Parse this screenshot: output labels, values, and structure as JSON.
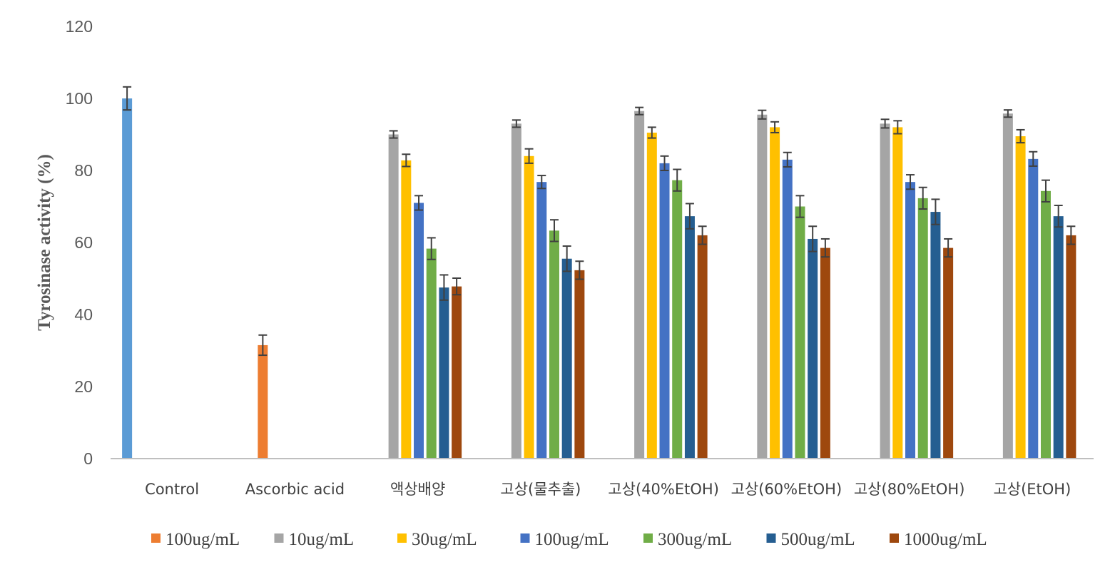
{
  "chart_data": {
    "type": "bar",
    "title": "",
    "xlabel": "",
    "ylabel": "Tyrosinase  activity (%)",
    "ylim": [
      0,
      120
    ],
    "yticks": [
      0,
      20,
      40,
      60,
      80,
      100,
      120
    ],
    "grid": false,
    "legend_position": "bottom",
    "categories": [
      "Control",
      "Ascorbic acid",
      "액상배양",
      "고상(물추출)",
      "고상(40%EtOH)",
      "고상(60%EtOH)",
      "고상(80%EtOH)",
      "고상(EtOH)"
    ],
    "control": {
      "name": "",
      "color": "#5B9BD5",
      "category": "Control",
      "value": 100,
      "error": 3.2
    },
    "series": [
      {
        "name": "100ug/mL",
        "color": "#ED7D31",
        "values": [
          null,
          31.5,
          null,
          null,
          null,
          null,
          null,
          null
        ],
        "errors": [
          null,
          2.8,
          null,
          null,
          null,
          null,
          null,
          null
        ]
      },
      {
        "name": "10ug/mL",
        "color": "#A5A5A5",
        "values": [
          null,
          null,
          90,
          93,
          96.5,
          95.5,
          93,
          95.8
        ],
        "errors": [
          null,
          null,
          1,
          1,
          1,
          1.2,
          1.2,
          1
        ]
      },
      {
        "name": "30ug/mL",
        "color": "#FFC000",
        "values": [
          null,
          null,
          82.8,
          84,
          90.5,
          92,
          92,
          89.5
        ],
        "errors": [
          null,
          null,
          1.7,
          2,
          1.5,
          1.5,
          1.8,
          1.8
        ]
      },
      {
        "name": "100ug/mL",
        "color": "#4472C4",
        "values": [
          null,
          null,
          71,
          76.8,
          82,
          83,
          76.8,
          83.2
        ],
        "errors": [
          null,
          null,
          2,
          1.8,
          2,
          2,
          2,
          2
        ]
      },
      {
        "name": "300ug/mL",
        "color": "#70AD47",
        "values": [
          null,
          null,
          58.3,
          63.3,
          77.3,
          70,
          72.3,
          74.3
        ],
        "errors": [
          null,
          null,
          3,
          3,
          3,
          3,
          3,
          3
        ]
      },
      {
        "name": "500ug/mL",
        "color": "#255E91",
        "values": [
          null,
          null,
          47.5,
          55.5,
          67.3,
          61,
          68.5,
          67.3
        ],
        "errors": [
          null,
          null,
          3.5,
          3.5,
          3.5,
          3.5,
          3.5,
          3
        ]
      },
      {
        "name": "1000ug/mL",
        "color": "#9E480E",
        "values": [
          null,
          null,
          47.8,
          52.3,
          62,
          58.5,
          58.5,
          62
        ],
        "errors": [
          null,
          null,
          2.3,
          2.5,
          2.5,
          2.5,
          2.5,
          2.5
        ]
      }
    ]
  },
  "colors": {
    "axis": "#BFBFBF",
    "error_bar": "#404040",
    "tick_text": "#595959"
  }
}
